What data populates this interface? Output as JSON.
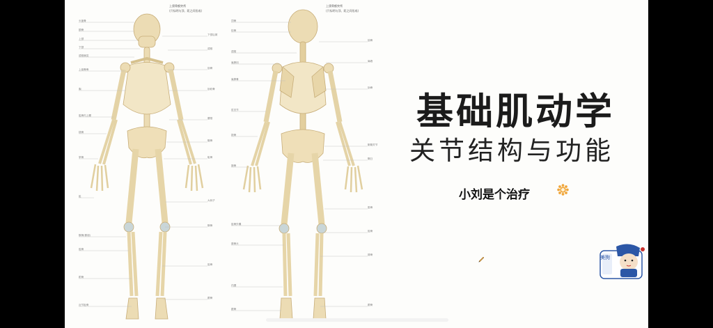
{
  "slide": {
    "title": "基础肌动学",
    "subtitle": "关节结构与功能",
    "author": "小刘是个治疗"
  },
  "mascot": {
    "label": "美狗"
  },
  "front_view": {
    "top_labels": [
      "上颌骨额突颅",
      "(只标明与顶、距之间形成)"
    ],
    "left_labels": [
      "头盖骨",
      "额骨",
      "上颌",
      "下颌",
      "颈椎棘突",
      "锁骨",
      "上臂骨骨",
      "肱骨",
      "胸",
      "胸骨",
      "肱骨内上髁",
      "尺骨",
      "桡骨",
      "腕骨",
      "掌骨",
      "指骨",
      "趾",
      "股骨",
      "髌骨(髌韧)",
      "胫骨内髁",
      "胫骨",
      "腓骨",
      "跗骨",
      "距骨",
      "第一跖骨",
      "跖骨",
      "近节趾骨",
      "中节趾骨",
      "远节趾骨"
    ],
    "right_labels": [
      "下颌后窝",
      "颈椎",
      "锁骨",
      "肩胛",
      "肋骨",
      "胸骨",
      "肋软骨",
      "肱骨",
      "腰椎",
      "髂骨",
      "骶骨",
      "尾骨",
      "耻骨",
      "坐骨",
      "股骨头",
      "股骨颈",
      "大转子",
      "髌骨",
      "胫骨",
      "腓骨",
      "跟骨",
      "距骨",
      "跖骨",
      "趾骨"
    ]
  },
  "back_view": {
    "top_labels": [
      "上颌骨额突颅",
      "(只标明与顶、距之间形成)"
    ],
    "left_labels": [
      "顶骨",
      "枕骨",
      "枕骨外隆凸",
      "颞骨乳突",
      "颈椎",
      "肩胛冈",
      "肩胛骨",
      "肱骨",
      "肋骨",
      "肘关节",
      "鹰嘴",
      "桡骨",
      "尺骨",
      "腕骨",
      "掌骨",
      "指骨",
      "骶骨",
      "股骨",
      "胫骨外髁",
      "腓骨头",
      "腓骨",
      "胫骨",
      "内踝",
      "外踝",
      "跟骨",
      "趾骨"
    ],
    "right_labels": [
      "锁骨",
      "肩峰",
      "肩胛冈",
      "胸椎",
      "肋骨",
      "腰椎",
      "髂嵴",
      "骶髂关节",
      "髋臼",
      "坐骨结节",
      "股骨头",
      "大转子",
      "股骨",
      "胫骨",
      "腓骨",
      "距骨",
      "跟骨"
    ]
  },
  "colors": {
    "slide_bg": "#fdfdfb",
    "letterbox": "#000000",
    "bone": "#ecdcb4",
    "bone_shadow": "#c7ad78",
    "cartilage": "#c9d6d8",
    "title": "#1b1b1b",
    "sun": "#f0a63a",
    "mascot_blue": "#2c57a6"
  },
  "icons": {
    "author_badge": "sun-icon",
    "cursor": "pen-cursor",
    "mascot": "cartoon-doctor-icon"
  }
}
